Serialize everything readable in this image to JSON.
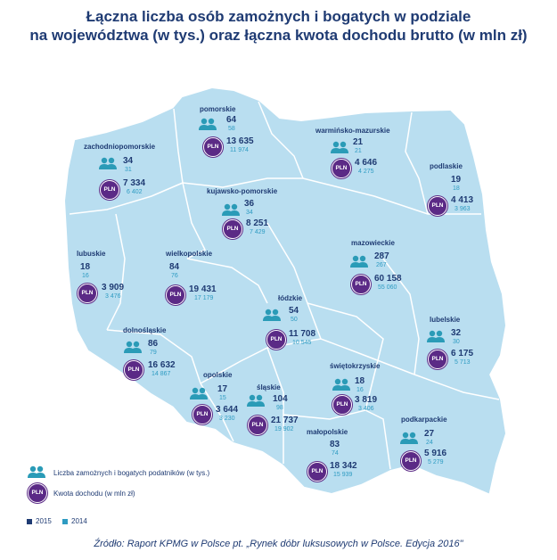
{
  "title": {
    "line1": "Łączna liczba osób zamożnych i bogatych w podziale",
    "line2": "na województwa (w tys.) oraz łączna kwota dochodu brutto (w mln zł)"
  },
  "colors": {
    "map_fill": "#b9def0",
    "region_border": "#ffffff",
    "pln_circle": "#5b2a86",
    "people_icon": "#2a9bb7",
    "year_2015": "#1f3b73",
    "year_2014": "#2e9bc2"
  },
  "pln_label": "PLN",
  "regions": [
    {
      "name": "pomorskie",
      "people_2015": "64",
      "people_2014": "58",
      "income_2015": "13 635",
      "income_2014": "11 974"
    },
    {
      "name": "warmińsko-mazurskie",
      "people_2015": "21",
      "people_2014": "21",
      "income_2015": "4 646",
      "income_2014": "4 275"
    },
    {
      "name": "zachodniopomorskie",
      "people_2015": "34",
      "people_2014": "31",
      "income_2015": "7 334",
      "income_2014": "6 402"
    },
    {
      "name": "podlaskie",
      "people_2015": "19",
      "people_2014": "18",
      "income_2015": "4 413",
      "income_2014": "3 963"
    },
    {
      "name": "kujawsko-pomorskie",
      "people_2015": "36",
      "people_2014": "34",
      "income_2015": "8 251",
      "income_2014": "7 429"
    },
    {
      "name": "lubuskie",
      "people_2015": "18",
      "people_2014": "16",
      "income_2015": "3 909",
      "income_2014": "3 476"
    },
    {
      "name": "wielkopolskie",
      "people_2015": "84",
      "people_2014": "76",
      "income_2015": "19 431",
      "income_2014": "17 179"
    },
    {
      "name": "mazowieckie",
      "people_2015": "287",
      "people_2014": "267",
      "income_2015": "60 158",
      "income_2014": "55 060"
    },
    {
      "name": "łódzkie",
      "people_2015": "54",
      "people_2014": "50",
      "income_2015": "11 708",
      "income_2014": "10 545"
    },
    {
      "name": "dolnośląskie",
      "people_2015": "86",
      "people_2014": "79",
      "income_2015": "16 632",
      "income_2014": "14 867"
    },
    {
      "name": "lubelskie",
      "people_2015": "32",
      "people_2014": "30",
      "income_2015": "6 175",
      "income_2014": "5 713"
    },
    {
      "name": "opolskie",
      "people_2015": "17",
      "people_2014": "15",
      "income_2015": "3 644",
      "income_2014": "3 230"
    },
    {
      "name": "śląskie",
      "people_2015": "104",
      "people_2014": "98",
      "income_2015": "21 737",
      "income_2014": "19 902"
    },
    {
      "name": "świętokrzyskie",
      "people_2015": "18",
      "people_2014": "16",
      "income_2015": "3 819",
      "income_2014": "3 406"
    },
    {
      "name": "małopolskie",
      "people_2015": "83",
      "people_2014": "74",
      "income_2015": "18 342",
      "income_2014": "15 939"
    },
    {
      "name": "podkarpackie",
      "people_2015": "27",
      "people_2014": "24",
      "income_2015": "5 916",
      "income_2014": "5 279"
    }
  ],
  "legend": {
    "people_label": "Liczba zamożnych i bogatych podatników (w tys.)",
    "income_label": "Kwota dochodu (w mln zł)",
    "year_2015": "2015",
    "year_2014": "2014"
  },
  "source": "Źródło: Raport KPMG w Polsce pt. „Rynek dóbr luksusowych w Polsce. Edycja 2016\""
}
